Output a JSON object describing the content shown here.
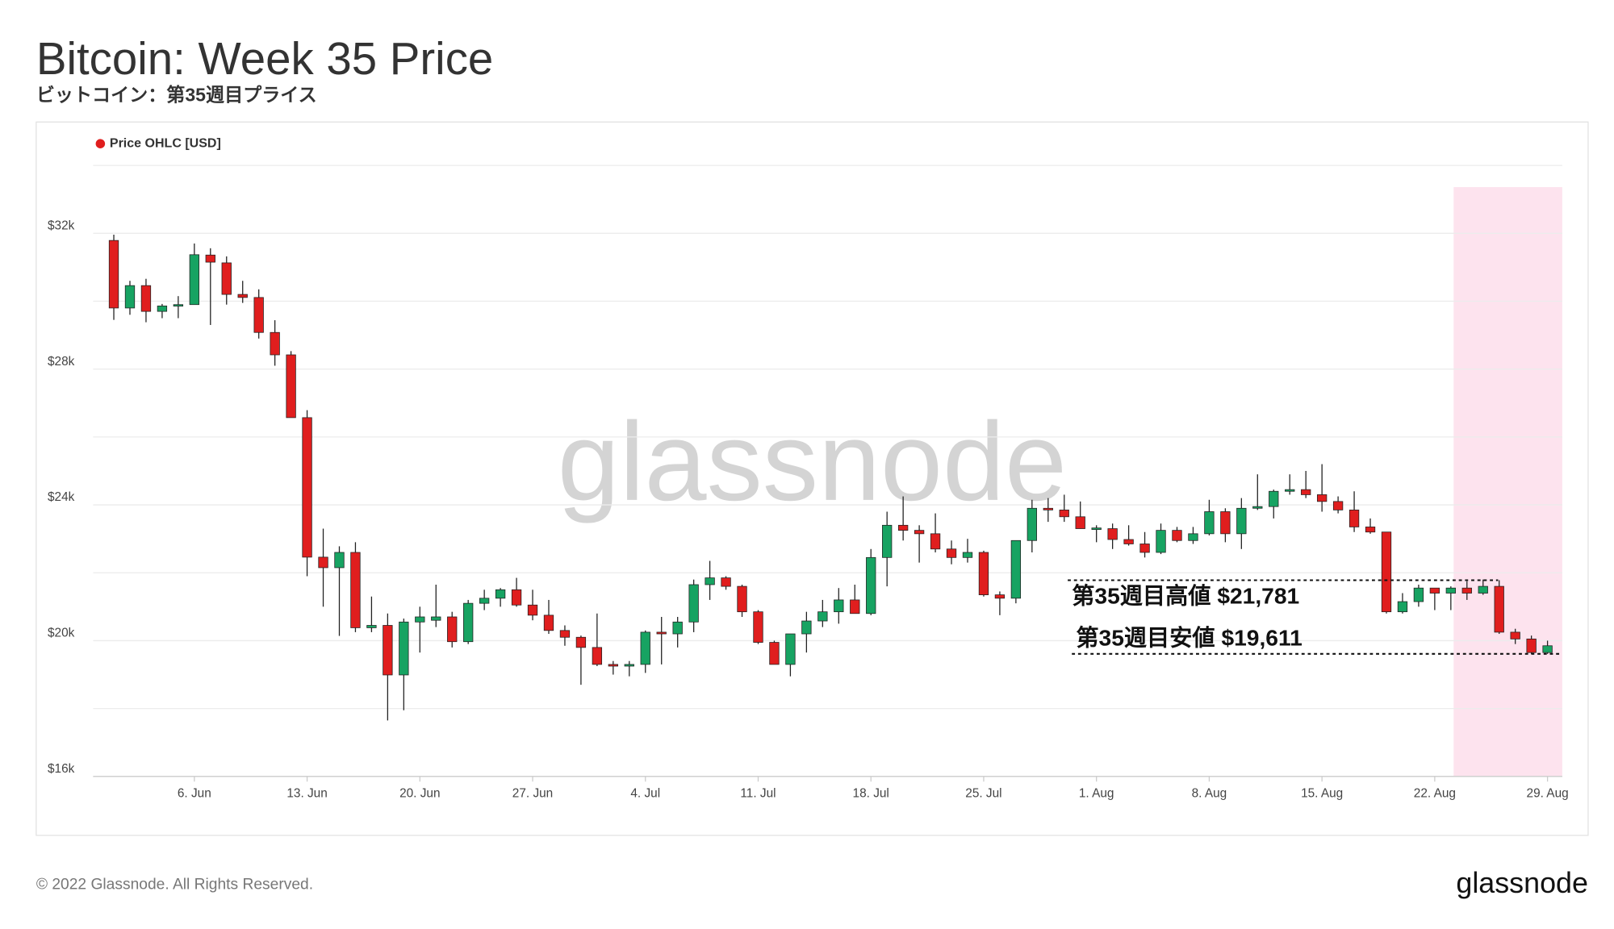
{
  "chart_data": {
    "type": "candlestick",
    "title": "Bitcoin: Week 35 Price",
    "subtitle": "ビットコイン：第35週目プライス",
    "legend": "Price OHLC [USD]",
    "legend_color": "#e01e1e",
    "watermark": "glassnode",
    "footer": "© 2022 Glassnode. All Rights Reserved.",
    "logo": "glassnode",
    "up_color": "#17a362",
    "down_color": "#e01e1e",
    "grid": true,
    "categories": [
      null,
      null,
      null,
      null,
      null,
      "6. Jun",
      null,
      null,
      null,
      null,
      null,
      null,
      "13. Jun",
      null,
      null,
      null,
      null,
      null,
      null,
      "20. Jun",
      null,
      null,
      null,
      null,
      null,
      null,
      "27. Jun",
      null,
      null,
      null,
      null,
      null,
      null,
      "4. Jul",
      null,
      null,
      null,
      null,
      null,
      null,
      "11. Jul",
      null,
      null,
      null,
      null,
      null,
      null,
      "18. Jul",
      null,
      null,
      null,
      null,
      null,
      null,
      "25. Jul",
      null,
      null,
      null,
      null,
      null,
      null,
      "1. Aug",
      null,
      null,
      null,
      null,
      null,
      null,
      "8. Aug",
      null,
      null,
      null,
      null,
      null,
      null,
      "15. Aug",
      null,
      null,
      null,
      null,
      null,
      null,
      "22. Aug",
      null,
      null,
      null,
      null,
      null,
      null,
      "29. Aug"
    ],
    "open": [
      31790,
      29800,
      30460,
      29700,
      29860,
      29900,
      31360,
      31130,
      30200,
      30110,
      29080,
      28420,
      26570,
      22460,
      22150,
      22600,
      20380,
      20450,
      18990,
      20550,
      20600,
      20700,
      19970,
      21100,
      21250,
      21500,
      21050,
      20750,
      20300,
      20100,
      19800,
      19300,
      19250,
      19300,
      20250,
      20200,
      20550,
      21650,
      21850,
      21600,
      20850,
      19950,
      19300,
      20200,
      20580,
      20850,
      21200,
      20800,
      22450,
      23400,
      23250,
      23150,
      22700,
      22450,
      22600,
      21350,
      21250,
      22950,
      23900,
      23850,
      23650,
      23300,
      23300,
      22980,
      22850,
      22600,
      23250,
      22950,
      23150,
      23800,
      23150,
      23900,
      23950,
      24400,
      24450,
      24300,
      24100,
      23850,
      23350,
      23200,
      20850,
      21150,
      21550,
      21400,
      21550,
      21400,
      21600,
      20250,
      20050,
      19650
    ],
    "high": [
      31960,
      30600,
      30660,
      29920,
      30150,
      31700,
      31560,
      31320,
      30600,
      30350,
      29440,
      28530,
      26790,
      23300,
      22780,
      22900,
      21300,
      20800,
      20650,
      21000,
      21650,
      20850,
      21200,
      21500,
      21550,
      21850,
      21500,
      21200,
      20450,
      20150,
      20800,
      19400,
      19400,
      20300,
      20700,
      20700,
      21800,
      22350,
      21900,
      21650,
      20900,
      20000,
      20200,
      20850,
      21200,
      21550,
      21650,
      22700,
      23800,
      24250,
      23400,
      23750,
      22950,
      23000,
      22650,
      21450,
      22950,
      24150,
      24200,
      24300,
      24100,
      23400,
      23450,
      23400,
      23200,
      23450,
      23350,
      23350,
      24150,
      23900,
      24200,
      24900,
      24450,
      24900,
      25000,
      25200,
      24250,
      24400,
      23600,
      23200,
      21400,
      21650,
      21550,
      21600,
      21750,
      21800,
      21781,
      20350,
      20150,
      20000
    ],
    "low": [
      29450,
      29600,
      29380,
      29500,
      29500,
      29900,
      29300,
      29900,
      29950,
      28900,
      28100,
      26600,
      21900,
      21000,
      20140,
      20250,
      20250,
      17650,
      17950,
      19650,
      20400,
      19800,
      19900,
      20900,
      21000,
      21000,
      20600,
      20200,
      19850,
      18700,
      19250,
      19000,
      18950,
      19050,
      19300,
      19800,
      20250,
      21200,
      21500,
      20700,
      19900,
      19300,
      18950,
      19650,
      20400,
      20500,
      20800,
      20750,
      21600,
      22950,
      22300,
      22600,
      22250,
      22300,
      21300,
      20750,
      21100,
      22600,
      23500,
      23500,
      23300,
      22900,
      22700,
      22800,
      22450,
      22550,
      22900,
      22850,
      23100,
      22900,
      22700,
      23850,
      23600,
      24300,
      24200,
      23800,
      23750,
      23200,
      23150,
      20800,
      20800,
      21000,
      20900,
      20900,
      21200,
      21350,
      20200,
      19900,
      19611,
      19611
    ],
    "close": [
      29800,
      30460,
      29700,
      29860,
      29900,
      31370,
      31150,
      30200,
      30110,
      29080,
      28420,
      26570,
      22460,
      22150,
      22600,
      20380,
      20450,
      18990,
      20550,
      20700,
      20700,
      19970,
      21100,
      21250,
      21500,
      21050,
      20750,
      20300,
      20100,
      19800,
      19300,
      19250,
      19300,
      20250,
      20200,
      20550,
      21650,
      21850,
      21600,
      20850,
      19950,
      19300,
      20200,
      20580,
      20850,
      21200,
      20800,
      22450,
      23400,
      23250,
      23150,
      22700,
      22450,
      22600,
      21350,
      21250,
      22950,
      23900,
      23850,
      23650,
      23300,
      23320,
      22980,
      22850,
      22600,
      23250,
      22950,
      23150,
      23800,
      23150,
      23900,
      23950,
      24400,
      24450,
      24300,
      24100,
      23850,
      23350,
      23200,
      20850,
      21150,
      21550,
      21400,
      21550,
      21400,
      21600,
      20250,
      20050,
      19650,
      19850
    ],
    "ylim": [
      16000,
      34000
    ],
    "yticks": [
      {
        "value": 16000,
        "label": "$16k"
      },
      {
        "value": 20000,
        "label": "$20k"
      },
      {
        "value": 24000,
        "label": "$24k"
      },
      {
        "value": 28000,
        "label": "$28k"
      },
      {
        "value": 32000,
        "label": "$32k"
      }
    ],
    "minor_yticks": [
      18000,
      22000,
      26000,
      30000,
      34000
    ],
    "annotations": [
      {
        "text": "第35週目高値 $21,781",
        "value": 21781
      },
      {
        "text": "第35週目安値 $19,611",
        "value": 19611
      }
    ]
  }
}
